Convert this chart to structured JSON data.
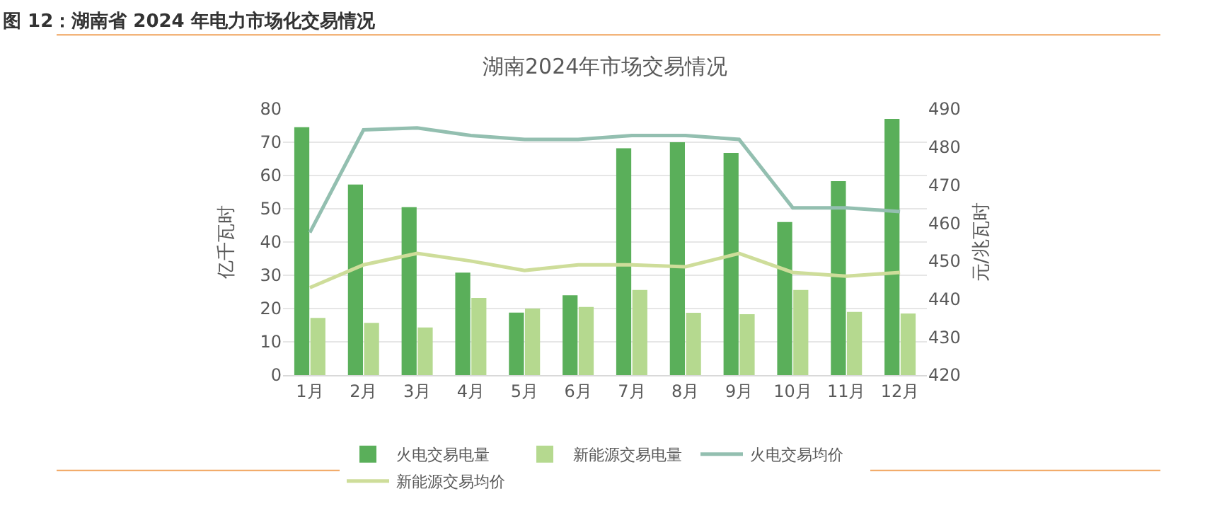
{
  "chart_data": {
    "type": "bar",
    "title": "图 12：湖南省 2024 年电力市场化交易情况",
    "subtitle": "湖南2024年市场交易情况",
    "ylabel": "亿千瓦时",
    "y2label": "元/兆瓦时",
    "categories": [
      "1月",
      "2月",
      "3月",
      "4月",
      "5月",
      "6月",
      "7月",
      "8月",
      "9月",
      "10月",
      "11月",
      "12月"
    ],
    "series": [
      {
        "name": "火电交易电量",
        "color": "#5aaf5a",
        "values": [
          74.5,
          57.3,
          50.5,
          30.8,
          18.8,
          24,
          68.2,
          70,
          66.8,
          46,
          58.3,
          77
        ]
      },
      {
        "name": "新能源交易电量",
        "color": "#b5d98f",
        "values": [
          17.2,
          15.7,
          14.3,
          23.2,
          20,
          20.5,
          25.6,
          18.7,
          18.3,
          25.6,
          19,
          18.5
        ]
      },
      {
        "name": "火电交易均价",
        "type": "line",
        "axis": "y2",
        "color": "#93bfb0",
        "values": [
          457.5,
          484.5,
          485,
          483,
          482,
          482,
          483,
          483,
          482,
          464,
          464,
          463
        ]
      },
      {
        "name": "新能源交易均价",
        "type": "line",
        "axis": "y2",
        "color": "#cedd9a",
        "values": [
          443,
          449,
          452,
          450,
          447.5,
          449,
          449,
          448.5,
          452,
          447,
          446,
          447
        ]
      }
    ],
    "ylim": [
      0,
      80
    ],
    "yticks": [
      0,
      10,
      20,
      30,
      40,
      50,
      60,
      70,
      80
    ],
    "y2lim": [
      420,
      490
    ],
    "y2ticks": [
      420,
      430,
      440,
      450,
      460,
      470,
      480,
      490
    ],
    "grid": "y",
    "legend": "bottom"
  }
}
